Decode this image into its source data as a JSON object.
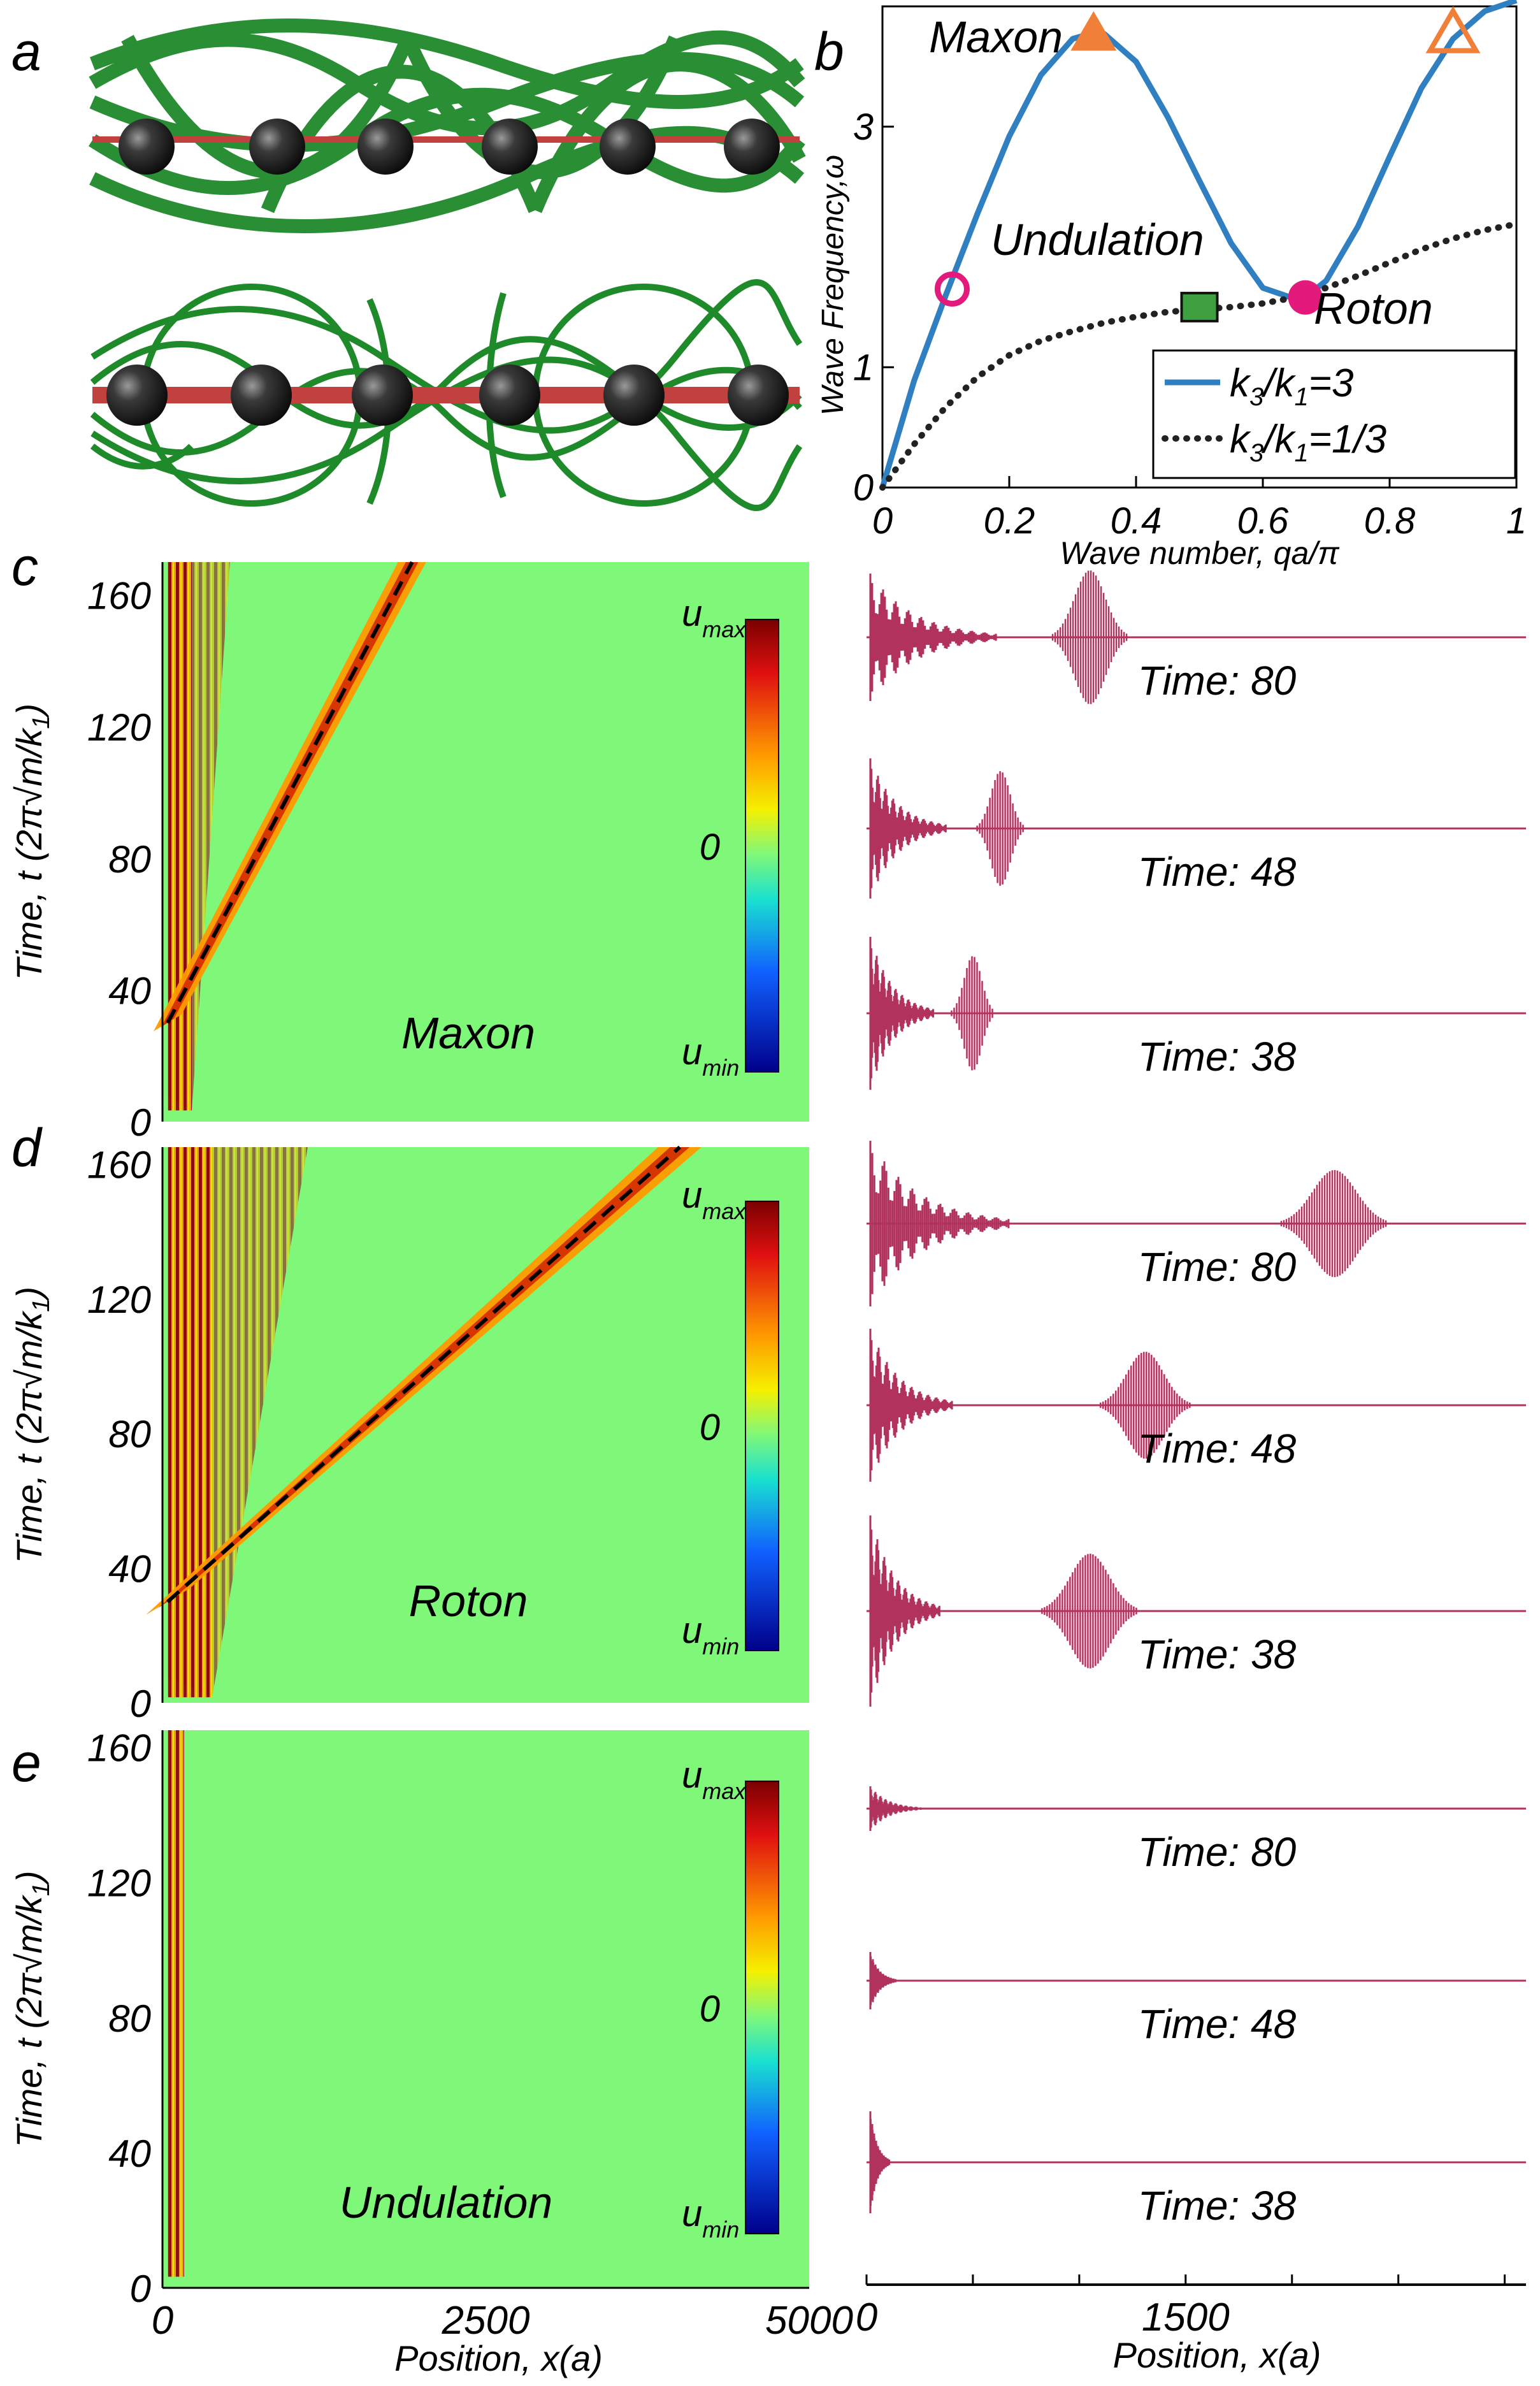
{
  "panel_letters": {
    "a": "a",
    "b": "b",
    "c": "c",
    "d": "d",
    "e": "e"
  },
  "colors": {
    "blue": "#2f7fc1",
    "orange": "#f07f3a",
    "magenta": "#e3197c",
    "green": "#3fa040",
    "wave": "#b0325d",
    "field_bg": "#7ff87a",
    "rod": "#c1413e",
    "ball": "#2a2a2a",
    "spring": "#1f8a2a"
  },
  "chart_data": [
    {
      "type": "line",
      "panel": "b",
      "xlabel": "Wave number, qa/π",
      "ylabel": "Wave Frequency,ω",
      "xlim": [
        0,
        1
      ],
      "ylim": [
        0,
        4.0
      ],
      "xticks": [
        "0",
        "0.2",
        "0.4",
        "0.6",
        "0.8",
        "1"
      ],
      "xtick_values": [
        0,
        0.2,
        0.4,
        0.6,
        0.8,
        1
      ],
      "yticks": [
        "0",
        "1",
        "3"
      ],
      "ytick_values": [
        0,
        1,
        3
      ],
      "series": [
        {
          "name": "k3/k1=3",
          "legend_main": "k",
          "legend_sub1": "3",
          "legend_mid": "/k",
          "legend_sub2": "1",
          "legend_end": "=3",
          "style": "solid",
          "x": [
            0,
            0.05,
            0.1,
            0.15,
            0.2,
            0.25,
            0.3,
            0.333,
            0.35,
            0.4,
            0.45,
            0.5,
            0.55,
            0.6,
            0.65,
            0.667,
            0.7,
            0.75,
            0.8,
            0.85,
            0.9,
            0.95,
            1.0
          ],
          "y": [
            0,
            0.89,
            1.6,
            2.28,
            2.92,
            3.43,
            3.73,
            3.78,
            3.77,
            3.54,
            3.08,
            2.55,
            2.03,
            1.66,
            1.57,
            1.58,
            1.72,
            2.17,
            2.75,
            3.32,
            3.73,
            3.96,
            4.05
          ]
        },
        {
          "name": "k3/k1=1/3",
          "legend_main": "k",
          "legend_sub1": "3",
          "legend_mid": "/k",
          "legend_sub2": "1",
          "legend_end": "=1/3",
          "style": "dotted",
          "x": [
            0,
            0.05,
            0.1,
            0.15,
            0.2,
            0.25,
            0.3,
            0.35,
            0.4,
            0.45,
            0.5,
            0.55,
            0.6,
            0.65,
            0.7,
            0.75,
            0.8,
            0.85,
            0.9,
            0.95,
            1.0
          ],
          "y": [
            0,
            0.36,
            0.67,
            0.92,
            1.1,
            1.22,
            1.3,
            1.37,
            1.42,
            1.46,
            1.48,
            1.5,
            1.53,
            1.58,
            1.66,
            1.76,
            1.87,
            1.98,
            2.07,
            2.14,
            2.19
          ]
        }
      ],
      "markers": [
        {
          "name": "maxon",
          "shape": "triangle-filled",
          "x": 0.333,
          "y": 3.78,
          "color": "#f07f3a"
        },
        {
          "name": "maxon-open",
          "shape": "triangle-open",
          "x": 0.9,
          "y": 3.78,
          "color": "#f07f3a"
        },
        {
          "name": "undulation",
          "shape": "circle-open",
          "x": 0.11,
          "y": 1.65,
          "color": "#e3197c"
        },
        {
          "name": "undulation-square",
          "shape": "square",
          "x": 0.5,
          "y": 1.5,
          "color": "#3fa040"
        },
        {
          "name": "roton",
          "shape": "circle-filled",
          "x": 0.667,
          "y": 1.58,
          "color": "#e3197c"
        }
      ],
      "annotations": {
        "maxon": "Maxon",
        "undulation": "Undulation",
        "roton": "Roton"
      }
    },
    {
      "type": "heatmap",
      "panel": "c",
      "label": "Maxon",
      "xlim": [
        0,
        5000
      ],
      "ylim": [
        0,
        170
      ],
      "yticks": [
        "0",
        "40",
        "80",
        "120",
        "160"
      ],
      "ytick_values": [
        0,
        40,
        80,
        120,
        160
      ],
      "front_line": {
        "x0": 0,
        "t0": 30,
        "x1": 1930,
        "t1": 170
      },
      "colorbar": {
        "max": "max",
        "zero": "0",
        "min": "min"
      }
    },
    {
      "type": "heatmap",
      "panel": "d",
      "label": "Roton",
      "xlim": [
        0,
        5000
      ],
      "ylim": [
        0,
        165
      ],
      "yticks": [
        "0",
        "40",
        "80",
        "120",
        "160"
      ],
      "ytick_values": [
        0,
        40,
        80,
        120,
        160
      ],
      "front_line": {
        "x0": 0,
        "t0": 30,
        "x1": 4000,
        "t1": 165
      },
      "colorbar": {
        "max": "max",
        "zero": "0",
        "min": "min"
      }
    },
    {
      "type": "heatmap",
      "panel": "e",
      "label": "Undulation",
      "xlim": [
        0,
        5000
      ],
      "ylim": [
        0,
        165
      ],
      "yticks": [
        "0",
        "40",
        "80",
        "120",
        "160"
      ],
      "ytick_values": [
        0,
        40,
        80,
        120,
        160
      ],
      "xticks": [
        "0",
        "2500",
        "5000"
      ],
      "xtick_values": [
        0,
        2500,
        5000
      ],
      "xlabel": "Position, x(a)",
      "colorbar": {
        "max": "max",
        "zero": "0",
        "min": "min"
      }
    },
    {
      "type": "line",
      "panel": "c-right",
      "snapshots": [
        {
          "label": "Time: 80",
          "packet_center": 1050,
          "packet_width": 350,
          "packet_amp": 0.35
        },
        {
          "label": "Time: 48",
          "packet_center": 630,
          "packet_width": 220,
          "packet_amp": 0.3
        },
        {
          "label": "Time: 38",
          "packet_center": 500,
          "packet_width": 200,
          "packet_amp": 0.3
        }
      ]
    },
    {
      "type": "line",
      "panel": "d-right",
      "snapshots": [
        {
          "label": "Time: 80",
          "packet_center": 2200,
          "packet_width": 500,
          "packet_amp": 0.28
        },
        {
          "label": "Time: 48",
          "packet_center": 1310,
          "packet_width": 420,
          "packet_amp": 0.28
        },
        {
          "label": "Time: 38",
          "packet_center": 1050,
          "packet_width": 450,
          "packet_amp": 0.3
        }
      ]
    },
    {
      "type": "line",
      "panel": "e-right",
      "xticks": [
        "0",
        "1500"
      ],
      "xtick_values": [
        0,
        1500
      ],
      "xlabel": "Position, x(a)",
      "snapshots": [
        {
          "label": "Time: 80",
          "packet_center": 0,
          "packet_width": 0,
          "packet_amp": 0
        },
        {
          "label": "Time: 48",
          "packet_center": 0,
          "packet_width": 0,
          "packet_amp": 0
        },
        {
          "label": "Time: 38",
          "packet_center": 0,
          "packet_width": 0,
          "packet_amp": 0
        }
      ]
    }
  ],
  "shared": {
    "ylabel_time": "Time, t (2π√m/k",
    "ylabel_sub": "1",
    "ylabel_end": ")",
    "u_symbol": "u"
  }
}
